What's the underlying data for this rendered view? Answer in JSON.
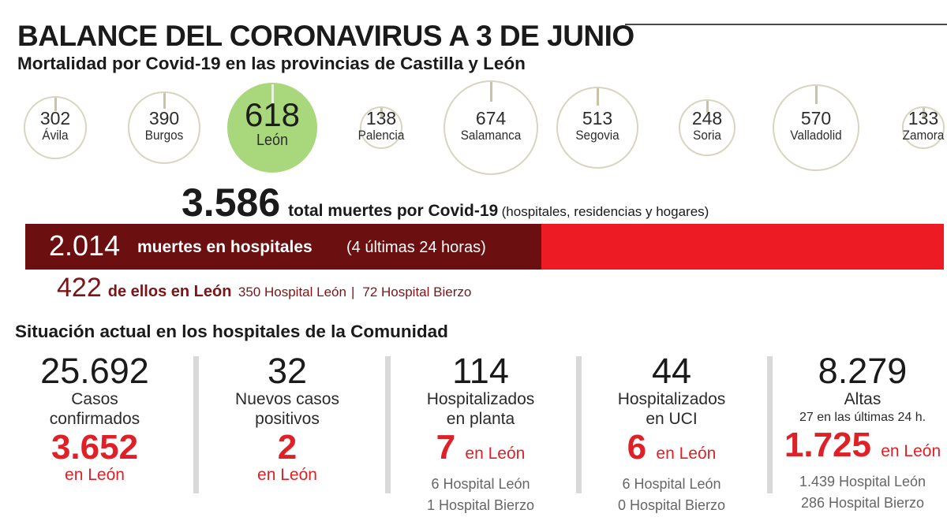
{
  "header": {
    "title": "BALANCE DEL CORONAVIRUS A 3 DE JUNIO",
    "subtitle": "Mortalidad por Covid-19 en las provincias de Castilla y León"
  },
  "colors": {
    "highlight": "#a9d77c",
    "dark_red": "#6b0f10",
    "red": "#ed1c24",
    "leon_red": "#7c1517"
  },
  "chart_data": {
    "type": "bubble",
    "title": "Mortalidad por Covid-19 en las provincias de Castilla y León",
    "categories": [
      "Ávila",
      "Burgos",
      "León",
      "Palencia",
      "Salamanca",
      "Segovia",
      "Soria",
      "Valladolid",
      "Zamora"
    ],
    "values": [
      302,
      390,
      618,
      138,
      674,
      513,
      248,
      570,
      133
    ],
    "highlight": "León"
  },
  "totals": {
    "total_value": "3.586",
    "total_label": "total muertes por Covid-19",
    "total_note": "(hospitales, residencias y hogares)",
    "hosp_value": "2.014",
    "hosp_label": "muertes en hospitales",
    "hosp_note": "(4 últimas 24 horas)",
    "hosp_fraction": 0.5616,
    "leon_value": "422",
    "leon_label": "de ellos en León",
    "leon_note1": "350 Hospital León",
    "leon_sep": "|",
    "leon_note2": "72 Hospital Bierzo"
  },
  "section_title": "Situación actual en los hospitales de la Comunidad",
  "stats": [
    {
      "big": "25.692",
      "line1": "Casos",
      "line2": "confirmados",
      "red": "3.652",
      "red_below": "en León"
    },
    {
      "big": "32",
      "line1": "Nuevos casos",
      "line2": "positivos",
      "red": "2",
      "red_below": "en León"
    },
    {
      "big": "114",
      "line1": "Hospitalizados",
      "line2": "en planta",
      "red": "7",
      "red_suffix": "en León",
      "h1": "6 Hospital León",
      "h2": "1 Hospital Bierzo"
    },
    {
      "big": "44",
      "line1": "Hospitalizados",
      "line2": "en UCI",
      "red": "6",
      "red_suffix": "en León",
      "h1": "6 Hospital León",
      "h2": "0 Hospital Bierzo"
    },
    {
      "big": "8.279",
      "line1": "Altas",
      "line2": "27 en las últimas 24 h.",
      "red": "1.725",
      "red_suffix": "en León",
      "h1": "1.439 Hospital León",
      "h2": "286 Hospital Bierzo"
    }
  ]
}
